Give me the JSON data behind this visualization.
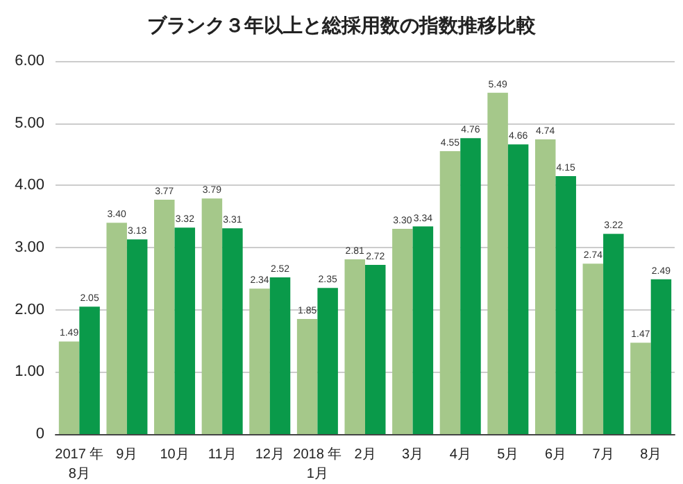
{
  "chart_data": {
    "type": "bar",
    "title": "ブランク３年以上と総採用数の指数推移比較",
    "categories": [
      "2017 年\n8月",
      "9月",
      "10月",
      "11月",
      "12月",
      "2018 年\n1月",
      "2月",
      "3月",
      "4月",
      "5月",
      "6月",
      "7月",
      "8月"
    ],
    "series": [
      {
        "color": "#a5c88a",
        "values": [
          1.49,
          3.4,
          3.77,
          3.79,
          2.34,
          1.85,
          2.81,
          3.3,
          4.55,
          5.49,
          4.74,
          2.74,
          1.47
        ],
        "value_labels": [
          "1.49",
          "3.40",
          "3.77",
          "3.79",
          "2.34",
          "1.85",
          "2.81",
          "3.30",
          "4.55",
          "5.49",
          "4.74",
          "2.74",
          "1.47"
        ]
      },
      {
        "color": "#0a9a4a",
        "values": [
          2.05,
          3.13,
          3.32,
          3.31,
          2.52,
          2.35,
          2.72,
          3.34,
          4.76,
          4.66,
          4.15,
          3.22,
          2.49
        ],
        "value_labels": [
          "2.05",
          "3.13",
          "3.32",
          "3.31",
          "2.52",
          "2.35",
          "2.72",
          "3.34",
          "4.76",
          "4.66",
          "4.15",
          "3.22",
          "2.49"
        ]
      }
    ],
    "ylim": [
      0,
      6
    ],
    "yticks": [
      0,
      {
        "value": 1,
        "label": "1.00"
      },
      {
        "value": 2,
        "label": "2.00"
      },
      {
        "value": 3,
        "label": "3.00"
      },
      {
        "value": 4,
        "label": "4.00"
      },
      {
        "value": 5,
        "label": "5.00"
      },
      {
        "value": 6,
        "label": "6.00"
      }
    ],
    "grid": "y"
  }
}
